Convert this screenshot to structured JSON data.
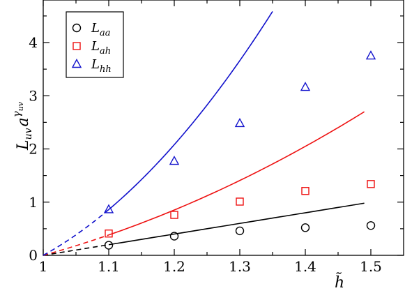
{
  "chart_data": {
    "type": "scatter",
    "xlabel": "h̃",
    "ylabel": {
      "base": "L",
      "sub": "uv",
      "a": "a",
      "exp": "γ",
      "exp_sub": "uv"
    },
    "xlim": [
      1.0,
      1.55
    ],
    "ylim": [
      0,
      4.8
    ],
    "x_ticks": [
      1,
      1.1,
      1.2,
      1.3,
      1.4,
      1.5
    ],
    "x_tick_labels": [
      "1",
      "1.1",
      "1.2",
      "1.3",
      "1.4",
      "1.5"
    ],
    "y_ticks": [
      0,
      1,
      2,
      3,
      4
    ],
    "y_tick_labels": [
      "0",
      "1",
      "2",
      "3",
      "4"
    ],
    "legend_position": "top-left",
    "series": [
      {
        "name": "L_aa",
        "label_base": "L",
        "label_sub": "aa",
        "marker": "circle",
        "color": "#000000",
        "x": [
          1.1,
          1.2,
          1.3,
          1.4,
          1.5
        ],
        "y": [
          0.19,
          0.36,
          0.46,
          0.52,
          0.56
        ],
        "curve_slope": 2.0,
        "curve_curvature": 0.0,
        "curve_dashed_x": [
          1.0,
          1.1
        ],
        "curve_solid_x": [
          1.1,
          1.49
        ]
      },
      {
        "name": "L_ah",
        "label_base": "L",
        "label_sub": "ah",
        "marker": "square",
        "color": "#ee1111",
        "x": [
          1.1,
          1.2,
          1.3,
          1.4,
          1.5
        ],
        "y": [
          0.41,
          0.76,
          1.01,
          1.21,
          1.34
        ],
        "curve_slope": 3.4,
        "curve_curvature": 4.3,
        "curve_dashed_x": [
          1.0,
          1.1
        ],
        "curve_solid_x": [
          1.1,
          1.49
        ]
      },
      {
        "name": "L_hh",
        "label_base": "L",
        "label_sub": "hh",
        "marker": "triangle",
        "color": "#1111cc",
        "x": [
          1.1,
          1.2,
          1.3,
          1.4,
          1.5
        ],
        "y": [
          0.86,
          1.77,
          2.48,
          3.16,
          3.75
        ],
        "curve_slope": 6.8,
        "curve_curvature": 18.0,
        "curve_dashed_x": [
          1.0,
          1.1
        ],
        "curve_solid_x": [
          1.1,
          1.35
        ]
      }
    ]
  }
}
